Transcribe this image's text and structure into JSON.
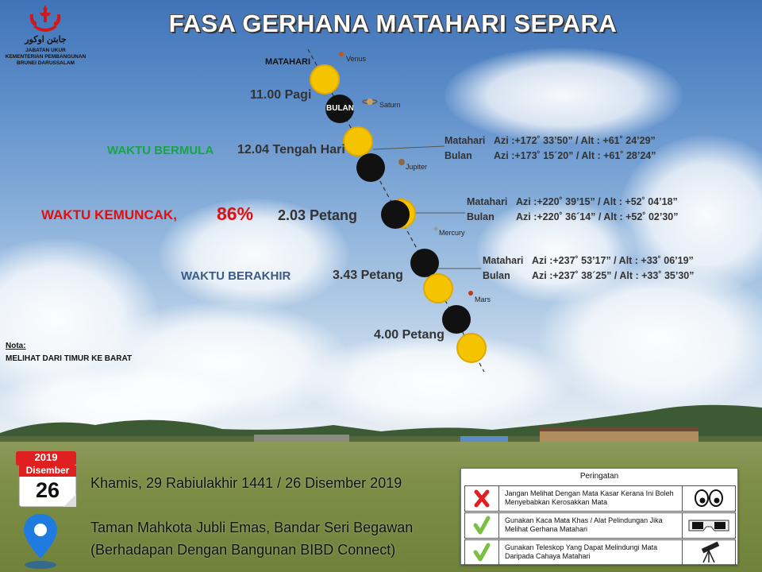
{
  "title": "FASA GERHANA MATAHARI SEPARA",
  "logo": {
    "arabic_text": "جابتن اوكور",
    "line1": "JABATAN UKUR",
    "line2": "KEMENTERIAN PEMBANGUNAN",
    "line3": "BRUNEI DARUSSALAM"
  },
  "labels": {
    "matahari": "MATAHARI",
    "bulan": "BULAN"
  },
  "times": {
    "t1100": "11.00 Pagi",
    "t1204": "12.04 Tengah Hari",
    "t203": "2.03 Petang",
    "t343": "3.43 Petang",
    "t400": "4.00 Petang"
  },
  "phases": {
    "bermula": "WAKTU BERMULA",
    "kemuncak": "WAKTU KEMUNCAK,",
    "kemuncak_percent": "86%",
    "berakhir": "WAKTU BERAKHIR"
  },
  "planets": {
    "venus": "Venus",
    "saturn": "Saturn",
    "jupiter": "Jupiter",
    "mercury": "Mercury",
    "mars": "Mars"
  },
  "coordinates": {
    "start": {
      "sun_name": "Matahari",
      "sun_value": "Azi :+172˚ 33’50” / Alt : +61˚ 24’29”",
      "moon_name": "Bulan",
      "moon_value": "Azi :+173˚ 15´20” / Alt : +61˚ 28’24”"
    },
    "peak": {
      "sun_name": "Matahari",
      "sun_value": "Azi :+220˚ 39’15” / Alt : +52˚ 04’18”",
      "moon_name": "Bulan",
      "moon_value": "Azi :+220˚ 36´14” / Alt : +52˚ 02’30”"
    },
    "end": {
      "sun_name": "Matahari",
      "sun_value": "Azi :+237˚ 53’17” / Alt : +33˚ 06’19”",
      "moon_name": "Bulan",
      "moon_value": "Azi :+237˚ 38´25” / Alt : +33˚ 35’30”"
    }
  },
  "note": {
    "title": "Nota:",
    "text": "MELIHAT DARI TIMUR KE BARAT"
  },
  "calendar": {
    "year": "2019",
    "month": "Disember",
    "day": "26"
  },
  "event": {
    "date": "Khamis, 29 Rabiulakhir 1441 / 26 Disember 2019",
    "venue_line1": "Taman Mahkota Jubli Emas, Bandar Seri Begawan",
    "venue_line2": "(Berhadapan Dengan Bangunan BIBD Connect)"
  },
  "warning": {
    "title": "Peringatan",
    "rows": [
      {
        "text": "Jangan Melihat Dengan Mata Kasar Kerana Ini Boleh Menyebabkan Kerosakkan Mata",
        "icon": "x-mark-icon",
        "picture": "eyes-icon"
      },
      {
        "text": "Gunakan Kaca Mata Khas / Alat Pelindungan Jika Melihat Gerhana Matahari",
        "icon": "check-mark-icon",
        "picture": "eclipse-glasses-icon"
      },
      {
        "text": "Gunakan Teleskop Yang Dapat Melindungi Mata Daripada Cahaya Matahari",
        "icon": "check-mark-icon",
        "picture": "telescope-icon"
      }
    ]
  },
  "colors": {
    "bermula": "#1aa34a",
    "kemuncak": "#e01010",
    "berakhir": "#3d5a86",
    "sun": "#f5c400",
    "moon": "#111111"
  }
}
